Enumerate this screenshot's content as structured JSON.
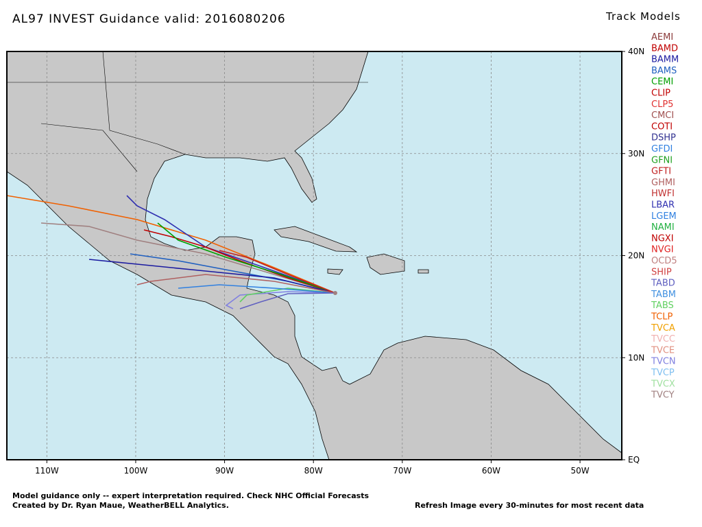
{
  "title": "AL97 INVEST Guidance valid: 2016080206",
  "legend_title": "Track Models",
  "lon_range": [
    -114.5,
    -45.3
  ],
  "lat_range": [
    0,
    40
  ],
  "lon_ticks": [
    {
      "value": -110,
      "label": "110W"
    },
    {
      "value": -100,
      "label": "100W"
    },
    {
      "value": -90,
      "label": "90W"
    },
    {
      "value": -80,
      "label": "80W"
    },
    {
      "value": -70,
      "label": "70W"
    },
    {
      "value": -60,
      "label": "60W"
    },
    {
      "value": -50,
      "label": "50W"
    }
  ],
  "lat_ticks": [
    {
      "value": 40,
      "label": "40N"
    },
    {
      "value": 30,
      "label": "30N"
    },
    {
      "value": 20,
      "label": "20N"
    },
    {
      "value": 10,
      "label": "10N"
    },
    {
      "value": 0,
      "label": "EQ"
    }
  ],
  "models": [
    {
      "name": "AEMI",
      "color": "#8b3a3a"
    },
    {
      "name": "BAMD",
      "color": "#c00000"
    },
    {
      "name": "BAMM",
      "color": "#1a1aa0"
    },
    {
      "name": "BAMS",
      "color": "#2060c0"
    },
    {
      "name": "CEMI",
      "color": "#00a000"
    },
    {
      "name": "CLIP",
      "color": "#c00000"
    },
    {
      "name": "CLP5",
      "color": "#e03030"
    },
    {
      "name": "CMCI",
      "color": "#a05050"
    },
    {
      "name": "COTI",
      "color": "#c00000"
    },
    {
      "name": "DSHP",
      "color": "#303090"
    },
    {
      "name": "GFDI",
      "color": "#3080e0"
    },
    {
      "name": "GFNI",
      "color": "#20a020"
    },
    {
      "name": "GFTI",
      "color": "#c02020"
    },
    {
      "name": "GHMI",
      "color": "#b06060"
    },
    {
      "name": "HWFI",
      "color": "#c03030"
    },
    {
      "name": "LBAR",
      "color": "#3030b0"
    },
    {
      "name": "LGEM",
      "color": "#3080e0"
    },
    {
      "name": "NAMI",
      "color": "#20b040"
    },
    {
      "name": "NGXI",
      "color": "#c00000"
    },
    {
      "name": "NVGI",
      "color": "#e02020"
    },
    {
      "name": "OCD5",
      "color": "#c08080"
    },
    {
      "name": "SHIP",
      "color": "#d04040"
    },
    {
      "name": "TABD",
      "color": "#6060c0"
    },
    {
      "name": "TABM",
      "color": "#4090e0"
    },
    {
      "name": "TABS",
      "color": "#60d060"
    },
    {
      "name": "TCLP",
      "color": "#f06000"
    },
    {
      "name": "TVCA",
      "color": "#f0a000"
    },
    {
      "name": "TVCC",
      "color": "#f0b0b0"
    },
    {
      "name": "TVCE",
      "color": "#e09080"
    },
    {
      "name": "TVCN",
      "color": "#8080e0"
    },
    {
      "name": "TVCP",
      "color": "#80c0f0"
    },
    {
      "name": "TVCX",
      "color": "#a0e0a0"
    },
    {
      "name": "TVCY",
      "color": "#a08080"
    }
  ],
  "footer": [
    "Model guidance only -- expert interpretation required.  Check NHC Official Forecasts",
    "Created by Dr. Ryan Maue, WeatherBELL Analytics.",
    "Refresh Image every 30-minutes for most recent data"
  ]
}
